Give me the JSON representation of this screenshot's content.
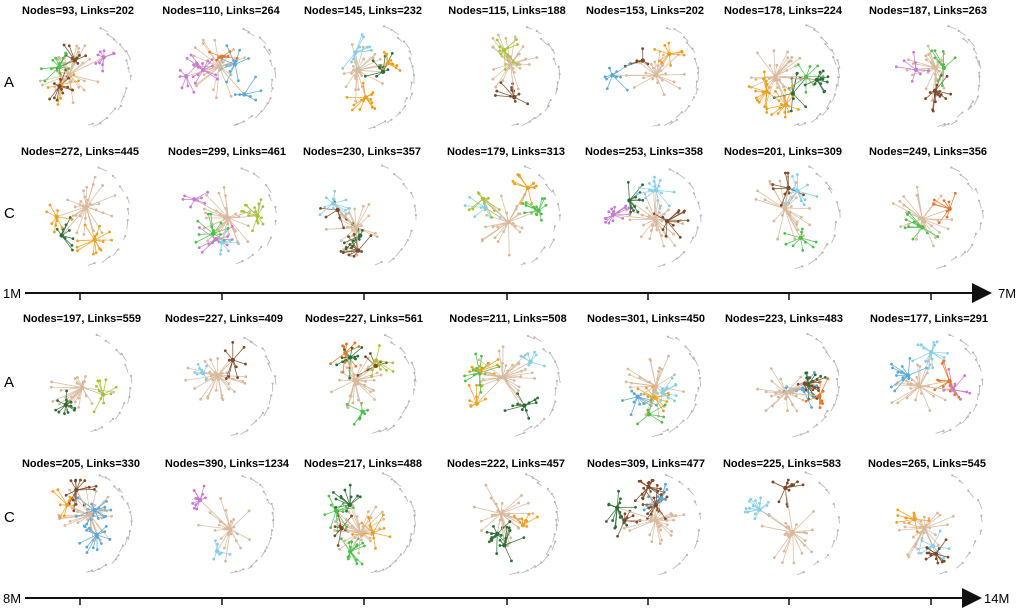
{
  "figure": {
    "panels": [
      {
        "time_axis": {
          "start": "1M",
          "end": "7M"
        },
        "rows": [
          {
            "label": "A",
            "captions": [
              "Nodes=93, Links=202",
              "Nodes=110, Links=264",
              "Nodes=145, Links=232",
              "Nodes=115, Links=188",
              "Nodes=153, Links=202",
              "Nodes=178, Links=224",
              "Nodes=187, Links=263"
            ]
          },
          {
            "label": "C",
            "captions": [
              "Nodes=272, Links=445",
              "Nodes=299, Links=461",
              "Nodes=230, Links=357",
              "Nodes=179, Links=313",
              "Nodes=253, Links=358",
              "Nodes=201, Links=309",
              "Nodes=249, Links=356"
            ]
          }
        ]
      },
      {
        "time_axis": {
          "start": "8M",
          "end": "14M"
        },
        "rows": [
          {
            "label": "A",
            "captions": [
              "Nodes=197, Links=559",
              "Nodes=227, Links=409",
              "Nodes=227, Links=561",
              "Nodes=211, Links=508",
              "Nodes=301, Links=450",
              "Nodes=223, Links=483",
              "Nodes=177, Links=291"
            ]
          },
          {
            "label": "C",
            "captions": [
              "Nodes=205, Links=330",
              "Nodes=390, Links=1234",
              "Nodes=217, Links=488",
              "Nodes=222, Links=457",
              "Nodes=309, Links=477",
              "Nodes=225, Links=583",
              "Nodes=265, Links=545"
            ]
          }
        ]
      }
    ],
    "community_colors": [
      "#d9b99b",
      "#5aa8d8",
      "#4dc04a",
      "#e8742a",
      "#7a4a2a",
      "#c77ad6",
      "#a8c23a",
      "#87cfe8",
      "#2e6e36",
      "#f0a020"
    ],
    "isolated_color": "#b5b5b5"
  }
}
